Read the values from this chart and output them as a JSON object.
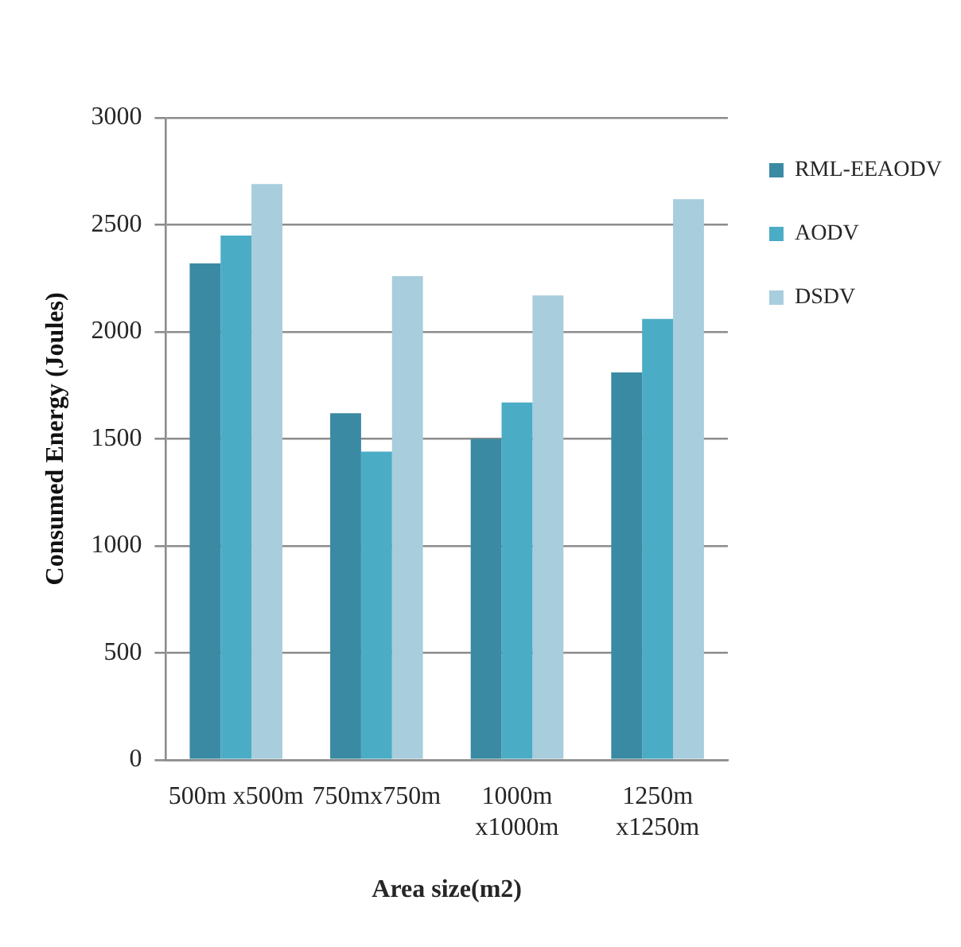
{
  "chart_data": {
    "type": "bar",
    "xlabel": "Area size(m2)",
    "ylabel": "Consumed Energy (Joules)",
    "categories": [
      "500m x500m",
      "750mx750m",
      "1000m x1000m",
      "1250m x1250m"
    ],
    "series": [
      {
        "name": "RML-EEAODV",
        "color": "#3b8aa3",
        "values": [
          2320,
          1620,
          1500,
          1810
        ]
      },
      {
        "name": "AODV",
        "color": "#4bacc6",
        "values": [
          2450,
          1440,
          1670,
          2060
        ]
      },
      {
        "name": "DSDV",
        "color": "#a8cddc",
        "values": [
          2690,
          2260,
          2170,
          2620
        ]
      }
    ],
    "ylim": [
      0,
      3000
    ],
    "yticks": [
      0,
      500,
      1000,
      1500,
      2000,
      2500,
      3000
    ],
    "grid": "y",
    "legend": "top right"
  }
}
